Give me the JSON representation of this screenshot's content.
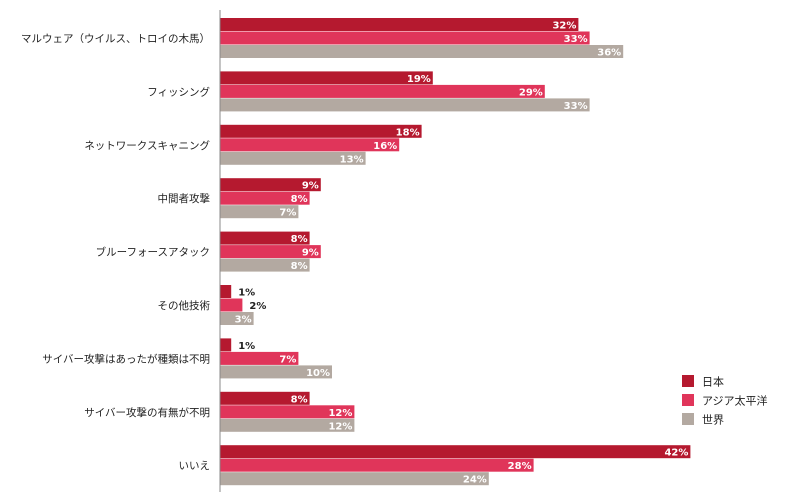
{
  "chart_data": {
    "type": "bar",
    "orientation": "horizontal",
    "categories": [
      "マルウェア（ウイルス、トロイの木馬）",
      "フィッシング",
      "ネットワークスキャニング",
      "中間者攻撃",
      "ブルーフォースアタック",
      "その他技術",
      "サイバー攻撃はあったが種類は不明",
      "サイバー攻撃の有無が不明",
      "いいえ"
    ],
    "series": [
      {
        "name": "日本",
        "color": "#b5192f",
        "values": [
          32,
          19,
          18,
          9,
          8,
          1,
          1,
          8,
          42
        ]
      },
      {
        "name": "アジア太平洋",
        "color": "#e0355a",
        "values": [
          33,
          29,
          16,
          8,
          9,
          2,
          7,
          12,
          28
        ]
      },
      {
        "name": "世界",
        "color": "#b3a9a1",
        "values": [
          36,
          33,
          13,
          7,
          8,
          3,
          10,
          12,
          24
        ]
      }
    ],
    "value_suffix": "%",
    "xlim": [
      0,
      45
    ],
    "grid": false,
    "legend_position": "bottom-right"
  }
}
